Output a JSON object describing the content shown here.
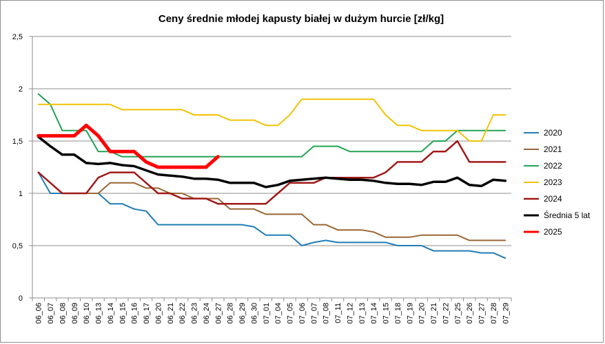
{
  "chart_data": {
    "type": "line",
    "title": "Ceny średnie młodej kapusty białej w dużym hurcie [zł/kg]",
    "xlabel": "",
    "ylabel": "",
    "ylim": [
      0,
      2.5
    ],
    "ytick_values": [
      0,
      0.5,
      1,
      1.5,
      2,
      2.5
    ],
    "ytick_labels": [
      "0",
      "0,5",
      "1",
      "1,5",
      "2",
      "2,5"
    ],
    "grid": "horizontal",
    "legend_position": "right",
    "categories": [
      "06_06",
      "06_07",
      "06_08",
      "06_09",
      "06_10",
      "06_13",
      "06_14",
      "06_15",
      "06_16",
      "06_17",
      "06_20",
      "06_21",
      "06_22",
      "06_23",
      "06_24",
      "06_27",
      "06_28",
      "06_29",
      "06_30",
      "07_01",
      "07_04",
      "07_05",
      "07_06",
      "07_07",
      "07_08",
      "07_11",
      "07_12",
      "07_13",
      "07_14",
      "07_15",
      "07_18",
      "07_19",
      "07_20",
      "07_21",
      "07_22",
      "07_25",
      "07_26",
      "07_27",
      "07_28",
      "07_29"
    ],
    "series": [
      {
        "name": "2020",
        "color": "#1f7cb4",
        "width": 2,
        "values": [
          1.2,
          1.0,
          1.0,
          1.0,
          1.0,
          1.0,
          0.9,
          0.9,
          0.85,
          0.83,
          0.7,
          0.7,
          0.7,
          0.7,
          0.7,
          0.7,
          0.7,
          0.7,
          0.68,
          0.6,
          0.6,
          0.6,
          0.5,
          0.53,
          0.55,
          0.53,
          0.53,
          0.53,
          0.53,
          0.53,
          0.5,
          0.5,
          0.5,
          0.45,
          0.45,
          0.45,
          0.45,
          0.43,
          0.43,
          0.38
        ]
      },
      {
        "name": "2021",
        "color": "#996633",
        "width": 2,
        "values": [
          null,
          null,
          1.0,
          1.0,
          1.0,
          1.0,
          1.1,
          1.1,
          1.1,
          1.05,
          1.05,
          1.0,
          1.0,
          0.95,
          0.95,
          0.95,
          0.85,
          0.85,
          0.85,
          0.8,
          0.8,
          0.8,
          0.8,
          0.7,
          0.7,
          0.65,
          0.65,
          0.65,
          0.63,
          0.58,
          0.58,
          0.58,
          0.6,
          0.6,
          0.6,
          0.6,
          0.55,
          0.55,
          0.55,
          0.55
        ]
      },
      {
        "name": "2022",
        "color": "#22a354",
        "width": 2,
        "values": [
          1.95,
          1.85,
          1.6,
          1.6,
          1.6,
          1.4,
          1.4,
          1.35,
          1.35,
          1.35,
          1.35,
          1.35,
          1.35,
          1.35,
          1.35,
          1.35,
          1.35,
          1.35,
          1.35,
          1.35,
          1.35,
          1.35,
          1.35,
          1.45,
          1.45,
          1.45,
          1.4,
          1.4,
          1.4,
          1.4,
          1.4,
          1.4,
          1.4,
          1.5,
          1.5,
          1.6,
          1.6,
          1.6,
          1.6,
          1.6
        ]
      },
      {
        "name": "2023",
        "color": "#f2c200",
        "width": 2,
        "values": [
          1.85,
          1.85,
          1.85,
          1.85,
          1.85,
          1.85,
          1.85,
          1.8,
          1.8,
          1.8,
          1.8,
          1.8,
          1.8,
          1.75,
          1.75,
          1.75,
          1.7,
          1.7,
          1.7,
          1.65,
          1.65,
          1.75,
          1.9,
          1.9,
          1.9,
          1.9,
          1.9,
          1.9,
          1.9,
          1.75,
          1.65,
          1.65,
          1.6,
          1.6,
          1.6,
          1.6,
          1.5,
          1.5,
          1.75,
          1.75
        ]
      },
      {
        "name": "2024",
        "color": "#a01818",
        "width": 2.5,
        "values": [
          1.2,
          1.1,
          1.0,
          1.0,
          1.0,
          1.15,
          1.2,
          1.2,
          1.2,
          1.1,
          1.0,
          1.0,
          0.95,
          0.95,
          0.95,
          0.9,
          0.9,
          0.9,
          0.9,
          0.9,
          1.0,
          1.1,
          1.1,
          1.1,
          1.15,
          1.15,
          1.15,
          1.15,
          1.15,
          1.2,
          1.3,
          1.3,
          1.3,
          1.4,
          1.4,
          1.5,
          1.3,
          1.3,
          1.3,
          1.3
        ]
      },
      {
        "name": "Średnia 5 lat",
        "color": "#000000",
        "width": 3.5,
        "values": [
          1.54,
          1.45,
          1.37,
          1.37,
          1.29,
          1.28,
          1.29,
          1.27,
          1.26,
          1.22,
          1.18,
          1.17,
          1.16,
          1.14,
          1.14,
          1.13,
          1.1,
          1.1,
          1.1,
          1.06,
          1.08,
          1.12,
          1.13,
          1.14,
          1.15,
          1.14,
          1.13,
          1.13,
          1.12,
          1.1,
          1.09,
          1.09,
          1.08,
          1.11,
          1.11,
          1.15,
          1.08,
          1.07,
          1.13,
          1.12
        ]
      },
      {
        "name": "2025",
        "color": "#ff0000",
        "width": 5,
        "values": [
          1.55,
          1.55,
          1.55,
          1.55,
          1.65,
          1.55,
          1.4,
          1.4,
          1.4,
          1.3,
          1.25,
          1.25,
          1.25,
          1.25,
          1.25,
          1.35,
          null,
          null,
          null,
          null,
          null,
          null,
          null,
          null,
          null,
          null,
          null,
          null,
          null,
          null,
          null,
          null,
          null,
          null,
          null,
          null,
          null,
          null,
          null,
          null
        ]
      }
    ]
  }
}
